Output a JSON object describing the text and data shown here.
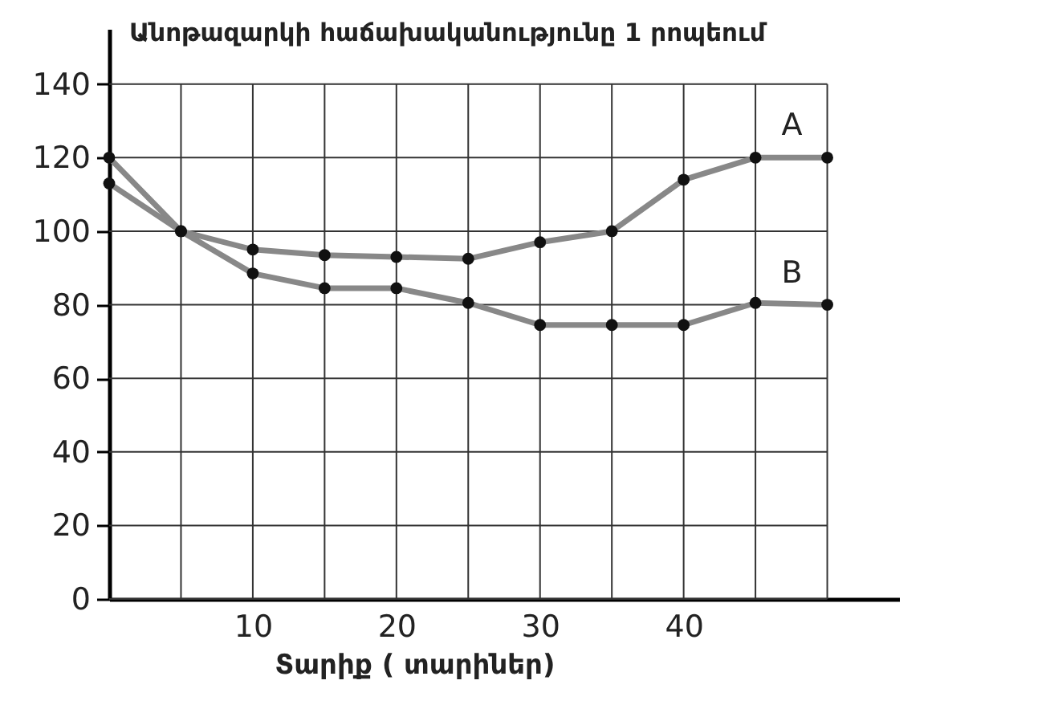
{
  "chart_data": {
    "type": "line",
    "ylabel": "Անոթազարկի հաճախականությունը 1 րոպեում",
    "xlabel": "Տարիք ( տարիներ)",
    "x": [
      0,
      5,
      10,
      15,
      20,
      25,
      30,
      35,
      40,
      45,
      50
    ],
    "series": [
      {
        "name": "A",
        "color": "#888888",
        "values": [
          120,
          100,
          95,
          93.5,
          93,
          92.5,
          97,
          100,
          114,
          120,
          120
        ]
      },
      {
        "name": "B",
        "color": "#888888",
        "values": [
          113,
          100,
          88.5,
          84.5,
          84.5,
          80.5,
          74.5,
          74.5,
          74.5,
          80.5,
          80
        ]
      }
    ],
    "xlim": [
      0,
      55
    ],
    "ylim": [
      0,
      155
    ],
    "xticks": [
      {
        "value": 5,
        "label": null
      },
      10,
      {
        "value": 15,
        "label": null
      },
      20,
      {
        "value": 25,
        "label": null
      },
      30,
      {
        "value": 35,
        "label": null
      },
      40,
      {
        "value": 45,
        "label": null
      },
      {
        "value": 50,
        "label": null
      }
    ],
    "yticks": [
      0,
      20,
      40,
      60,
      80,
      100,
      120,
      140
    ],
    "grid": true,
    "marker": "circle",
    "line_style": "solid"
  }
}
